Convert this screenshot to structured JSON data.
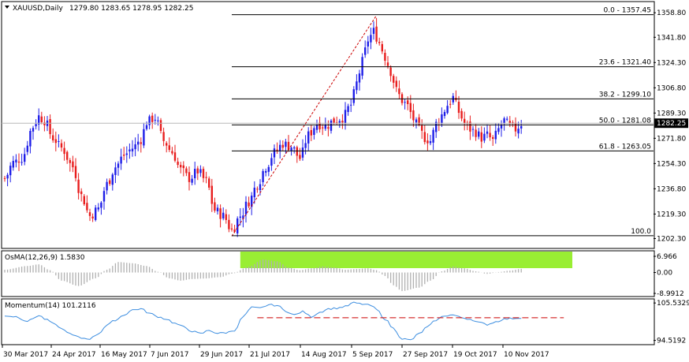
{
  "header": {
    "symbol": "XAUUSD,Daily",
    "ohlc": "1279.80 1283.65 1278.95 1282.25"
  },
  "osma_panel": {
    "title": "OsMA(12,26,9) 1.5830"
  },
  "momentum_panel": {
    "title": "Momentum(14) 101.2116"
  },
  "colors": {
    "bull": "#1e1ee8",
    "bear": "#e81e1e",
    "osma_bars": "#b0b0b0",
    "highlight": "#99ee33",
    "momentum_line": "#3d8ee0",
    "momentum_level": "#cc0000",
    "fib_line": "#000000",
    "trend": "#cc0000",
    "current_price": "#000000"
  },
  "chart_data": [
    {
      "type": "candlestick",
      "name": "price",
      "ylim": [
        1196,
        1366
      ],
      "y_ticks": [
        "1358.80",
        "1341.80",
        "1324.30",
        "1306.80",
        "1289.30",
        "1271.80",
        "1254.30",
        "1236.80",
        "1219.30",
        "1202.30"
      ],
      "x_ticks": [
        "30 Mar 2017",
        "24 Apr 2017",
        "16 May 2017",
        "7 Jun 2017",
        "29 Jun 2017",
        "21 Jul 2017",
        "14 Aug 2017",
        "5 Sep 2017",
        "27 Sep 2017",
        "19 Oct 2017",
        "10 Nov 2017"
      ],
      "current_price": "1282.25",
      "current_price_value": 1282.25,
      "anchor_points": [
        [
          0,
          1244
        ],
        [
          3,
          1255
        ],
        [
          6,
          1258
        ],
        [
          10,
          1280
        ],
        [
          12,
          1287
        ],
        [
          14,
          1284
        ],
        [
          17,
          1272
        ],
        [
          20,
          1265
        ],
        [
          24,
          1252
        ],
        [
          27,
          1232
        ],
        [
          30,
          1218
        ],
        [
          33,
          1223
        ],
        [
          36,
          1240
        ],
        [
          39,
          1252
        ],
        [
          42,
          1260
        ],
        [
          45,
          1265
        ],
        [
          48,
          1271
        ],
        [
          50,
          1283
        ],
        [
          53,
          1286
        ],
        [
          56,
          1270
        ],
        [
          59,
          1262
        ],
        [
          62,
          1250
        ],
        [
          65,
          1244
        ],
        [
          68,
          1249
        ],
        [
          71,
          1242
        ],
        [
          74,
          1222
        ],
        [
          77,
          1218
        ],
        [
          80,
          1208
        ],
        [
          83,
          1218
        ],
        [
          86,
          1228
        ],
        [
          89,
          1240
        ],
        [
          92,
          1252
        ],
        [
          95,
          1262
        ],
        [
          98,
          1268
        ],
        [
          101,
          1266
        ],
        [
          104,
          1258
        ],
        [
          107,
          1274
        ],
        [
          110,
          1282
        ],
        [
          113,
          1280
        ],
        [
          116,
          1284
        ],
        [
          119,
          1286
        ],
        [
          122,
          1295
        ],
        [
          124,
          1310
        ],
        [
          126,
          1325
        ],
        [
          128,
          1340
        ],
        [
          130,
          1346
        ],
        [
          132,
          1338
        ],
        [
          134,
          1328
        ],
        [
          136,
          1318
        ],
        [
          138,
          1305
        ],
        [
          140,
          1298
        ],
        [
          142,
          1294
        ],
        [
          144,
          1285
        ],
        [
          146,
          1278
        ],
        [
          148,
          1272
        ],
        [
          150,
          1270
        ],
        [
          152,
          1282
        ],
        [
          154,
          1288
        ],
        [
          156,
          1295
        ],
        [
          158,
          1300
        ],
        [
          160,
          1290
        ],
        [
          162,
          1282
        ],
        [
          164,
          1278
        ],
        [
          166,
          1276
        ],
        [
          168,
          1272
        ],
        [
          170,
          1274
        ],
        [
          172,
          1270
        ],
        [
          174,
          1278
        ],
        [
          176,
          1284
        ],
        [
          178,
          1280
        ],
        [
          180,
          1278
        ],
        [
          182,
          1282
        ]
      ],
      "fib_levels": [
        {
          "label": "0.0 - 1357.45",
          "value": 1357.45
        },
        {
          "label": "23.6 - 1321.40",
          "value": 1321.4
        },
        {
          "label": "38.2 - 1299.10",
          "value": 1299.1
        },
        {
          "label": "50.0 - 1281.08",
          "value": 1281.08
        },
        {
          "label": "61.8 - 1263.05",
          "value": 1263.05
        },
        {
          "label": "100.0",
          "value": 1204.3
        }
      ],
      "trendline": {
        "from": [
          80,
          1204
        ],
        "to": [
          131,
          1357
        ]
      }
    },
    {
      "type": "bar",
      "name": "OsMA(12,26,9)",
      "ylim": [
        -10,
        9
      ],
      "y_ticks": [
        "6.966",
        "0.00",
        "-8.9912"
      ],
      "anchor_points": [
        [
          0,
          1.2
        ],
        [
          8,
          2.8
        ],
        [
          12,
          3.5
        ],
        [
          16,
          1.0
        ],
        [
          20,
          -3.5
        ],
        [
          26,
          -5.8
        ],
        [
          32,
          -2.5
        ],
        [
          36,
          1.2
        ],
        [
          40,
          4.5
        ],
        [
          45,
          4.0
        ],
        [
          50,
          2.8
        ],
        [
          54,
          0.3
        ],
        [
          58,
          -2.5
        ],
        [
          62,
          -3.5
        ],
        [
          66,
          -2.8
        ],
        [
          70,
          -2.6
        ],
        [
          76,
          -2.0
        ],
        [
          80,
          -0.5
        ],
        [
          86,
          2.5
        ],
        [
          91,
          5.6
        ],
        [
          96,
          4.8
        ],
        [
          100,
          2.2
        ],
        [
          104,
          1.0
        ],
        [
          108,
          1.8
        ],
        [
          112,
          2.6
        ],
        [
          116,
          2.2
        ],
        [
          120,
          1.2
        ],
        [
          124,
          1.5
        ],
        [
          128,
          1.8
        ],
        [
          131,
          1.0
        ],
        [
          134,
          -1.5
        ],
        [
          137,
          -5.5
        ],
        [
          140,
          -8.0
        ],
        [
          146,
          -6.5
        ],
        [
          150,
          -3.5
        ],
        [
          154,
          0.5
        ],
        [
          158,
          2.6
        ],
        [
          162,
          1.8
        ],
        [
          166,
          0.5
        ],
        [
          170,
          -0.6
        ],
        [
          174,
          0.2
        ],
        [
          178,
          0.8
        ],
        [
          182,
          1.58
        ]
      ],
      "highlight_range": [
        83,
        200
      ]
    },
    {
      "type": "line",
      "name": "Momentum(14)",
      "ylim": [
        93.5,
        106.5
      ],
      "y_ticks": [
        "105.5329",
        "94.5192"
      ],
      "anchor_points": [
        [
          0,
          101.8
        ],
        [
          4,
          101.5
        ],
        [
          8,
          100.2
        ],
        [
          12,
          101.8
        ],
        [
          15,
          100.5
        ],
        [
          18,
          99.0
        ],
        [
          21,
          97.5
        ],
        [
          24,
          96.0
        ],
        [
          27,
          95.2
        ],
        [
          30,
          95.0
        ],
        [
          33,
          96.5
        ],
        [
          36,
          99.0
        ],
        [
          39,
          100.5
        ],
        [
          42,
          102.0
        ],
        [
          45,
          103.5
        ],
        [
          48,
          103.8
        ],
        [
          51,
          102.5
        ],
        [
          54,
          101.5
        ],
        [
          57,
          100.8
        ],
        [
          60,
          99.5
        ],
        [
          63,
          98.5
        ],
        [
          66,
          97.2
        ],
        [
          69,
          96.5
        ],
        [
          72,
          97.5
        ],
        [
          75,
          96.6
        ],
        [
          78,
          96.8
        ],
        [
          81,
          97.5
        ],
        [
          84,
          101.5
        ],
        [
          87,
          104.2
        ],
        [
          90,
          104.0
        ],
        [
          93,
          105.0
        ],
        [
          96,
          104.8
        ],
        [
          99,
          103.2
        ],
        [
          102,
          102.0
        ],
        [
          105,
          103.0
        ],
        [
          108,
          101.5
        ],
        [
          111,
          102.8
        ],
        [
          114,
          103.8
        ],
        [
          117,
          104.0
        ],
        [
          120,
          104.5
        ],
        [
          123,
          105.6
        ],
        [
          126,
          105.2
        ],
        [
          129,
          104.8
        ],
        [
          131,
          103.6
        ],
        [
          134,
          100.8
        ],
        [
          137,
          98.0
        ],
        [
          140,
          95.0
        ],
        [
          143,
          94.6
        ],
        [
          146,
          96.5
        ],
        [
          149,
          98.5
        ],
        [
          152,
          100.5
        ],
        [
          155,
          101.8
        ],
        [
          158,
          102.0
        ],
        [
          161,
          101.2
        ],
        [
          164,
          100.8
        ],
        [
          167,
          99.8
        ],
        [
          170,
          99.2
        ],
        [
          173,
          100.0
        ],
        [
          176,
          100.8
        ],
        [
          179,
          101.0
        ],
        [
          182,
          101.21
        ]
      ],
      "level": {
        "value": 101.2,
        "from": 89,
        "to": 197
      }
    }
  ]
}
